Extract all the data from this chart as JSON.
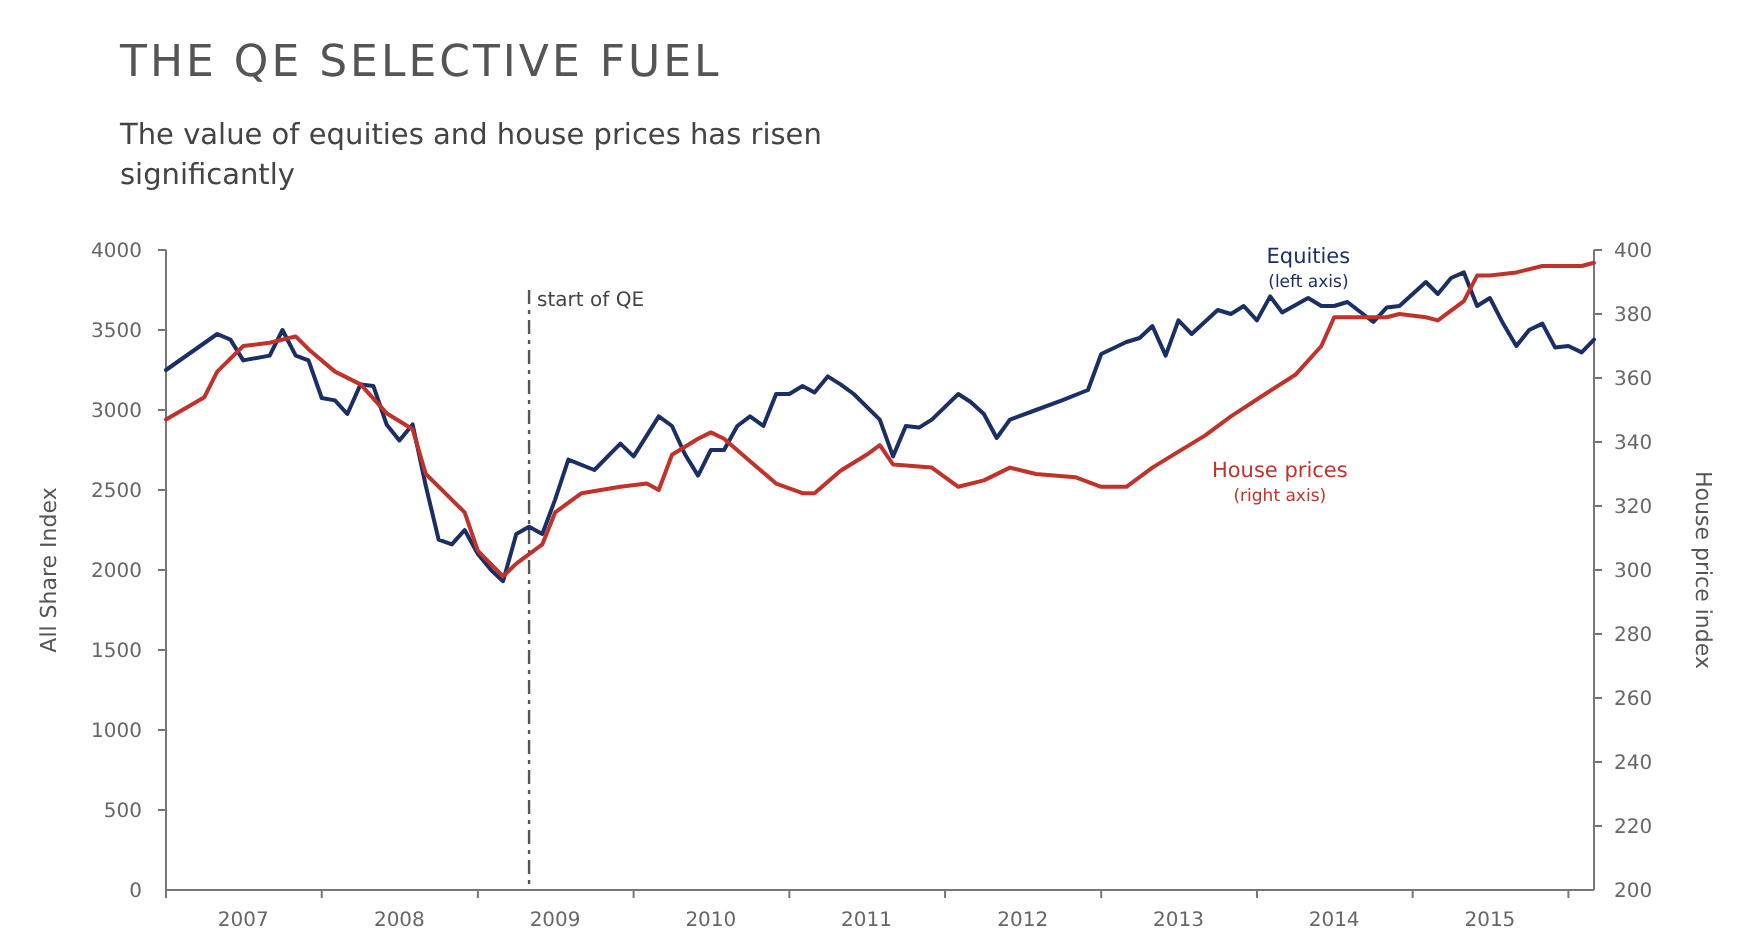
{
  "chart_data": {
    "type": "line",
    "title": "THE QE SELECTIVE FUEL",
    "subtitle": "The value of equities and house prices has risen significantly",
    "ylabel": "All Share Index",
    "y2label": "House price index",
    "xlim": [
      "2007-01",
      "2016-03"
    ],
    "xticks": [
      {
        "value": "2007-01",
        "label": null
      },
      {
        "value": "2007-07",
        "label": "2007"
      },
      {
        "value": "2008-01",
        "label": null
      },
      {
        "value": "2008-07",
        "label": "2008"
      },
      {
        "value": "2009-01",
        "label": null
      },
      {
        "value": "2009-07",
        "label": "2009"
      },
      {
        "value": "2010-01",
        "label": null
      },
      {
        "value": "2010-07",
        "label": "2010"
      },
      {
        "value": "2011-01",
        "label": null
      },
      {
        "value": "2011-07",
        "label": "2011"
      },
      {
        "value": "2012-01",
        "label": null
      },
      {
        "value": "2012-07",
        "label": "2012"
      },
      {
        "value": "2013-01",
        "label": null
      },
      {
        "value": "2013-07",
        "label": "2013"
      },
      {
        "value": "2014-01",
        "label": null
      },
      {
        "value": "2014-07",
        "label": "2014"
      },
      {
        "value": "2015-01",
        "label": null
      },
      {
        "value": "2015-07",
        "label": "2015"
      },
      {
        "value": "2016-01",
        "label": null
      }
    ],
    "ylim": [
      0,
      4000
    ],
    "yticks": [
      0,
      500,
      1000,
      1500,
      2000,
      2500,
      3000,
      3500,
      4000
    ],
    "y2lim": [
      200,
      400
    ],
    "y2ticks": [
      200,
      220,
      240,
      260,
      280,
      300,
      320,
      340,
      360,
      380,
      400
    ],
    "grid": false,
    "marker": "none",
    "line_style": "solid",
    "annotations": [
      "(left axis)",
      "(right axis)"
    ],
    "ref_lines": [
      {
        "axis": "x",
        "value": "2009-05",
        "label": "start of QE",
        "color": "#555555",
        "line_style": "dashed"
      }
    ],
    "series": [
      {
        "name": "Equities",
        "color": "#1b2f66",
        "x": [
          "2007-01",
          "2007-05",
          "2007-06",
          "2007-07",
          "2007-09",
          "2007-10",
          "2007-11",
          "2007-12",
          "2008-01",
          "2008-02",
          "2008-03",
          "2008-04",
          "2008-05",
          "2008-06",
          "2008-07",
          "2008-08",
          "2008-09",
          "2008-10",
          "2008-11",
          "2008-12",
          "2009-01",
          "2009-02",
          "2009-03",
          "2009-04",
          "2009-05",
          "2009-06",
          "2009-07",
          "2009-08",
          "2009-10",
          "2009-12",
          "2010-01",
          "2010-03",
          "2010-04",
          "2010-05",
          "2010-06",
          "2010-07",
          "2010-08",
          "2010-09",
          "2010-10",
          "2010-11",
          "2010-12",
          "2011-01",
          "2011-02",
          "2011-03",
          "2011-04",
          "2011-05",
          "2011-06",
          "2011-08",
          "2011-09",
          "2011-10",
          "2011-11",
          "2011-12",
          "2012-02",
          "2012-03",
          "2012-04",
          "2012-05",
          "2012-06",
          "2012-08",
          "2012-10",
          "2012-12",
          "2013-01",
          "2013-03",
          "2013-04",
          "2013-05",
          "2013-06",
          "2013-07",
          "2013-08",
          "2013-10",
          "2013-11",
          "2013-12",
          "2014-01",
          "2014-02",
          "2014-03",
          "2014-05",
          "2014-06",
          "2014-07",
          "2014-08",
          "2014-10",
          "2014-11",
          "2014-12",
          "2015-02",
          "2015-03",
          "2015-04",
          "2015-05",
          "2015-06",
          "2015-07",
          "2015-08",
          "2015-09",
          "2015-10",
          "2015-11",
          "2015-12",
          "2016-01",
          "2016-02",
          "2016-03"
        ],
        "values": [
          3250,
          3475,
          3440,
          3310,
          3340,
          3500,
          3340,
          3310,
          3075,
          3060,
          2975,
          3160,
          3150,
          2910,
          2810,
          2910,
          2525,
          2190,
          2160,
          2250,
          2100,
          2000,
          1930,
          2225,
          2270,
          2225,
          2440,
          2690,
          2625,
          2790,
          2710,
          2960,
          2900,
          2725,
          2590,
          2750,
          2750,
          2900,
          2960,
          2900,
          3100,
          3100,
          3150,
          3110,
          3210,
          3160,
          3100,
          2940,
          2710,
          2900,
          2890,
          2940,
          3100,
          3050,
          2975,
          2825,
          2940,
          3000,
          3060,
          3125,
          3350,
          3425,
          3450,
          3525,
          3340,
          3560,
          3475,
          3625,
          3600,
          3650,
          3560,
          3710,
          3610,
          3700,
          3650,
          3650,
          3675,
          3550,
          3640,
          3650,
          3800,
          3725,
          3825,
          3860,
          3650,
          3700,
          3540,
          3400,
          3500,
          3540,
          3390,
          3400,
          3360,
          3440
        ]
      },
      {
        "name": "House prices",
        "color": "#c0322a",
        "axis": "y2",
        "x": [
          "2007-01",
          "2007-04",
          "2007-05",
          "2007-07",
          "2007-09",
          "2007-11",
          "2007-12",
          "2008-02",
          "2008-04",
          "2008-06",
          "2008-08",
          "2008-09",
          "2008-12",
          "2009-01",
          "2009-03",
          "2009-04",
          "2009-06",
          "2009-07",
          "2009-09",
          "2009-12",
          "2010-02",
          "2010-03",
          "2010-04",
          "2010-06",
          "2010-07",
          "2010-08",
          "2010-10",
          "2010-12",
          "2011-02",
          "2011-03",
          "2011-05",
          "2011-07",
          "2011-08",
          "2011-09",
          "2011-12",
          "2012-02",
          "2012-04",
          "2012-06",
          "2012-08",
          "2012-11",
          "2013-01",
          "2013-03",
          "2013-05",
          "2013-07",
          "2013-09",
          "2013-11",
          "2014-02",
          "2014-04",
          "2014-06",
          "2014-07",
          "2014-09",
          "2014-11",
          "2014-12",
          "2015-02",
          "2015-03",
          "2015-05",
          "2015-06",
          "2015-07",
          "2015-09",
          "2015-11",
          "2016-02",
          "2016-03"
        ],
        "values": [
          347,
          354,
          362,
          370,
          371,
          373,
          369,
          362,
          358,
          349,
          344,
          330,
          318,
          306,
          298,
          302,
          308,
          318,
          324,
          326,
          327,
          325,
          336,
          341,
          343,
          341,
          334,
          327,
          324,
          324,
          331,
          336,
          339,
          333,
          332,
          326,
          328,
          332,
          330,
          329,
          326,
          326,
          332,
          337,
          342,
          348,
          356,
          361,
          370,
          379,
          379,
          379,
          380,
          379,
          378,
          384,
          392,
          392,
          393,
          395,
          395,
          396
        ]
      }
    ]
  }
}
